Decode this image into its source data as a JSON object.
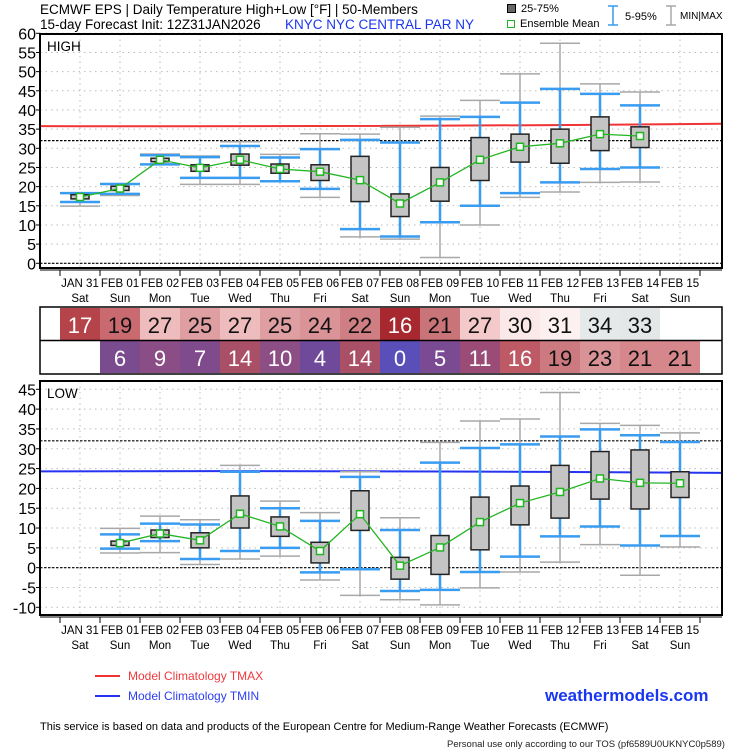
{
  "header": {
    "title": "ECMWF EPS | Daily Temperature High+Low [°F] | 50-Members",
    "init": "15-day Forecast Init: 12Z31JAN2026",
    "station": "KNYC  NYC CENTRAL PAR NY",
    "legend": {
      "iqr": "25-75%",
      "mean": "Ensemble Mean",
      "p5_95": "5-95%",
      "minmax": "MIN|MAX"
    }
  },
  "colors": {
    "iqr_fill": "#c4c4c4",
    "mean": "#22b522",
    "p5_95": "#3a9cf0",
    "minmax": "#a8a8a8",
    "tmax_clim": "#f03434",
    "tmin_clim": "#2634f0",
    "brand": "#1a37f0"
  },
  "chart_data": [
    {
      "type": "box",
      "panel_label": "HIGH",
      "ylim": [
        0,
        60
      ],
      "yticks": [
        0,
        5,
        10,
        15,
        20,
        25,
        30,
        35,
        40,
        45,
        50,
        55,
        60
      ],
      "reference_lines": [
        32,
        0
      ],
      "grid": true,
      "categories": [
        "JAN 31",
        "FEB 01",
        "FEB 02",
        "FEB 03",
        "FEB 04",
        "FEB 05",
        "FEB 06",
        "FEB 07",
        "FEB 08",
        "FEB 09",
        "FEB 10",
        "FEB 11",
        "FEB 12",
        "FEB 13",
        "FEB 14",
        "FEB 15"
      ],
      "days": [
        "Sat",
        "Sun",
        "Mon",
        "Tue",
        "Wed",
        "Thu",
        "Fri",
        "Sat",
        "Sun",
        "Mon",
        "Tue",
        "Wed",
        "Thu",
        "Fri",
        "Sat",
        "Sun"
      ],
      "stats_order": [
        "min",
        "p5",
        "p25",
        "mean",
        "p75",
        "p95",
        "max"
      ],
      "values": [
        [
          14.9,
          16,
          16.8,
          17.3,
          17.9,
          18.3,
          18.3
        ],
        [
          17.7,
          18.1,
          19,
          19.5,
          20.1,
          20.7,
          20.7
        ],
        [
          25.8,
          25.8,
          26.5,
          27,
          27.4,
          28.2,
          28.5
        ],
        [
          20.6,
          22.3,
          24,
          24.9,
          25.7,
          27.7,
          28
        ],
        [
          20.6,
          22.3,
          25.6,
          27,
          28.5,
          30.6,
          31.7
        ],
        [
          21.4,
          21.4,
          23.5,
          24.6,
          25.9,
          27.6,
          28.4
        ],
        [
          17.2,
          19.4,
          21.6,
          23.9,
          25.7,
          29.8,
          33.8
        ],
        [
          6.9,
          8.9,
          16.1,
          21.7,
          27.9,
          32.2,
          33.7
        ],
        [
          6.3,
          7,
          12.2,
          15.6,
          18.1,
          31.5,
          35.5
        ],
        [
          1.5,
          10.7,
          16.2,
          21.1,
          25,
          37.6,
          38.4
        ],
        [
          10,
          15,
          21.6,
          27,
          32.8,
          38.2,
          42.5
        ],
        [
          17.2,
          18.3,
          26.4,
          30.4,
          33.7,
          41.9,
          49.4
        ],
        [
          18.6,
          21.1,
          26.1,
          31.3,
          35,
          45.5,
          57.4
        ],
        [
          21.1,
          24.6,
          29.4,
          33.7,
          38.2,
          44.2,
          46.8
        ],
        [
          21.2,
          25,
          30.2,
          33.2,
          35.6,
          41.2,
          44.7
        ],
        null
      ],
      "climatology": {
        "name": "Model Climatology TMAX",
        "start": 35.8,
        "mid": 35.6,
        "end": 36.4
      },
      "strip_values": [
        17,
        19,
        27,
        25,
        27,
        25,
        24,
        22,
        16,
        21,
        27,
        30,
        31,
        34,
        33,
        null
      ],
      "strip_colors": [
        "#b5444a",
        "#c96a70",
        "#efbcbe",
        "#df9fa2",
        "#efbcbe",
        "#df9fa2",
        "#da9497",
        "#cf7e83",
        "#a8282f",
        "#c97479",
        "#f3c9ca",
        "#fbe8e8",
        "#fcf0f0",
        "#e6e9e9",
        "#e3e7e7",
        null
      ]
    },
    {
      "type": "box",
      "panel_label": "LOW",
      "ylim": [
        -12,
        46
      ],
      "yticks": [
        -10,
        -5,
        0,
        5,
        10,
        15,
        20,
        25,
        30,
        35,
        40,
        45
      ],
      "reference_lines": [
        32,
        0
      ],
      "grid": true,
      "categories": [
        "JAN 31",
        "FEB 01",
        "FEB 02",
        "FEB 03",
        "FEB 04",
        "FEB 05",
        "FEB 06",
        "FEB 07",
        "FEB 08",
        "FEB 09",
        "FEB 10",
        "FEB 11",
        "FEB 12",
        "FEB 13",
        "FEB 14",
        "FEB 15"
      ],
      "days": [
        "Sat",
        "Sun",
        "Mon",
        "Tue",
        "Wed",
        "Thu",
        "Fri",
        "Sat",
        "Sun",
        "Mon",
        "Tue",
        "Wed",
        "Thu",
        "Fri",
        "Sat",
        "Sun"
      ],
      "stats_order": [
        "min",
        "p5",
        "p25",
        "mean",
        "p75",
        "p95",
        "max"
      ],
      "values": [
        null,
        [
          3.7,
          4.8,
          5.6,
          6.2,
          6.7,
          8.4,
          9.9
        ],
        [
          3.8,
          6.7,
          7.6,
          8.6,
          9.5,
          11.1,
          13
        ],
        [
          0.8,
          2.2,
          5,
          6.9,
          8.8,
          10.9,
          12.1
        ],
        [
          2.2,
          4.2,
          10,
          13.6,
          18.1,
          24.2,
          25.8
        ],
        [
          2.9,
          5,
          7.9,
          10.4,
          12.8,
          15,
          16.8
        ],
        [
          -3.1,
          -1.2,
          1.2,
          4.2,
          6.4,
          11.8,
          13.9
        ],
        [
          -7,
          -0.4,
          9.4,
          13.5,
          19.4,
          22.9,
          24.2
        ],
        [
          -8.1,
          -5.9,
          -2.9,
          0.5,
          2.6,
          9.5,
          12.6
        ],
        [
          -9.4,
          -5.6,
          -1.7,
          5.1,
          8.1,
          26.5,
          31.6
        ],
        [
          -5.1,
          -1.1,
          4.5,
          11.5,
          17.8,
          30.2,
          37
        ],
        [
          -1.1,
          2.8,
          10.8,
          16.3,
          20.6,
          31.1,
          37.5
        ],
        [
          1.4,
          7.9,
          12.5,
          19.1,
          25.8,
          33.1,
          44.2
        ],
        [
          5.8,
          10.4,
          17.3,
          22.5,
          29.3,
          34.9,
          36.4
        ],
        [
          -1.9,
          5.6,
          14.8,
          21.4,
          29.7,
          33.4,
          35.9
        ],
        [
          5.2,
          8,
          17.7,
          21.3,
          24.2,
          31.7,
          34
        ]
      ],
      "climatology": {
        "name": "Model Climatology TMIN",
        "start": 24.3,
        "mid": 24.5,
        "end": 23.9
      },
      "strip_values": [
        null,
        6,
        9,
        7,
        14,
        10,
        4,
        14,
        0,
        5,
        11,
        16,
        19,
        23,
        21,
        21
      ],
      "strip_colors": [
        null,
        "#7b4b8f",
        "#8a4d86",
        "#7f4b8c",
        "#a94f66",
        "#8c4e84",
        "#6f4a9b",
        "#a94f66",
        "#5a4fb8",
        "#7a4b93",
        "#9a4c77",
        "#bd5a65",
        "#cc7a80",
        "#d99397",
        "#d5878b",
        "#d5878b"
      ]
    }
  ],
  "legend_bottom": {
    "tmax": "Model Climatology TMAX",
    "tmin": "Model Climatology TMIN"
  },
  "brand": "weathermodels.com",
  "footer": {
    "attribution": "This service is based on data and products of the European Centre for Medium-Range Weather Forecasts (ECMWF)",
    "tos": "Personal use only according to our TOS (pf6589U0UKNYC0p589)"
  }
}
